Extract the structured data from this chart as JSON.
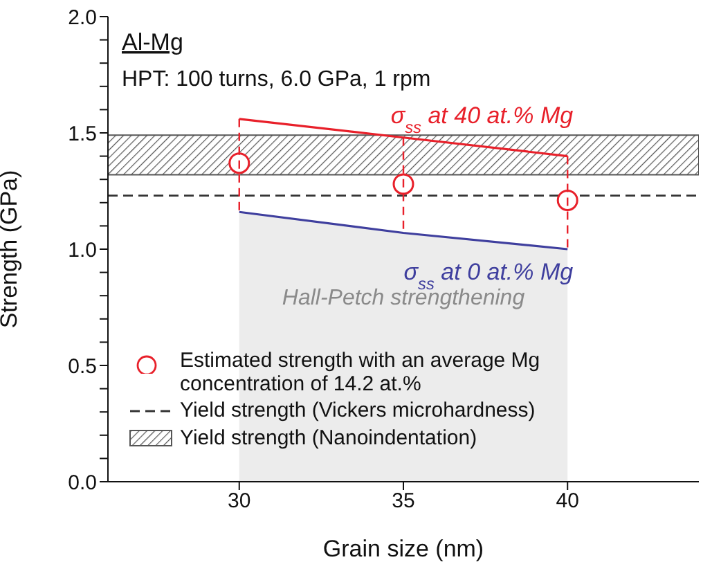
{
  "chart_data": {
    "type": "line",
    "title": "Al-Mg",
    "subtitle": "HPT: 100 turns, 6.0 GPa, 1 rpm",
    "xlabel": "Grain size (nm)",
    "ylabel": "Strength (GPa)",
    "x": [
      30,
      35,
      40
    ],
    "xlim": [
      26,
      44
    ],
    "xticks": [
      30,
      35,
      40
    ],
    "ylim": [
      0,
      2
    ],
    "yticks": [
      {
        "value": 0,
        "label": "0.0"
      },
      {
        "value": 0.1,
        "label": null
      },
      {
        "value": 0.2,
        "label": null
      },
      {
        "value": 0.3,
        "label": null
      },
      {
        "value": 0.4,
        "label": null
      },
      {
        "value": 0.5,
        "label": "0.5"
      },
      {
        "value": 0.6,
        "label": null
      },
      {
        "value": 0.7,
        "label": null
      },
      {
        "value": 0.8,
        "label": null
      },
      {
        "value": 0.9,
        "label": null
      },
      {
        "value": 1,
        "label": "1.0"
      },
      {
        "value": 1.1,
        "label": null
      },
      {
        "value": 1.2,
        "label": null
      },
      {
        "value": 1.3,
        "label": null
      },
      {
        "value": 1.4,
        "label": null
      },
      {
        "value": 1.5,
        "label": "1.5"
      },
      {
        "value": 1.6,
        "label": null
      },
      {
        "value": 1.7,
        "label": null
      },
      {
        "value": 1.8,
        "label": null
      },
      {
        "value": 1.9,
        "label": null
      },
      {
        "value": 2,
        "label": "2.0"
      }
    ],
    "series": [
      {
        "name": "σ$_{ss}$ at 40 at.% Mg",
        "color": "#e8202a",
        "values": [
          1.56,
          1.48,
          1.4
        ]
      },
      {
        "name": "σ$_{ss}$ at 0 at.% Mg",
        "type": "area",
        "color": "#3f3f9e",
        "values": [
          1.16,
          1.07,
          1.0
        ]
      },
      {
        "name": "Estimated strength with an average Mg concentration of 14.2 at.%",
        "type": "scatter",
        "marker": "circle",
        "color": "#e8202a",
        "values": [
          1.37,
          1.28,
          1.21
        ]
      }
    ],
    "ref_lines": [
      {
        "axis": "y",
        "value": 1.23,
        "label": "Yield strength (Vickers microhardness)",
        "line_style": "dashed",
        "color": "#333333"
      }
    ],
    "bands": [
      {
        "axis": "y",
        "from": 1.32,
        "to": 1.49,
        "label": "Yield strength (Nanoindentation)",
        "color": "#555555"
      }
    ],
    "annotations": [
      "Hall-Petch strengthening"
    ],
    "legend": "bottom left",
    "grid": false
  }
}
